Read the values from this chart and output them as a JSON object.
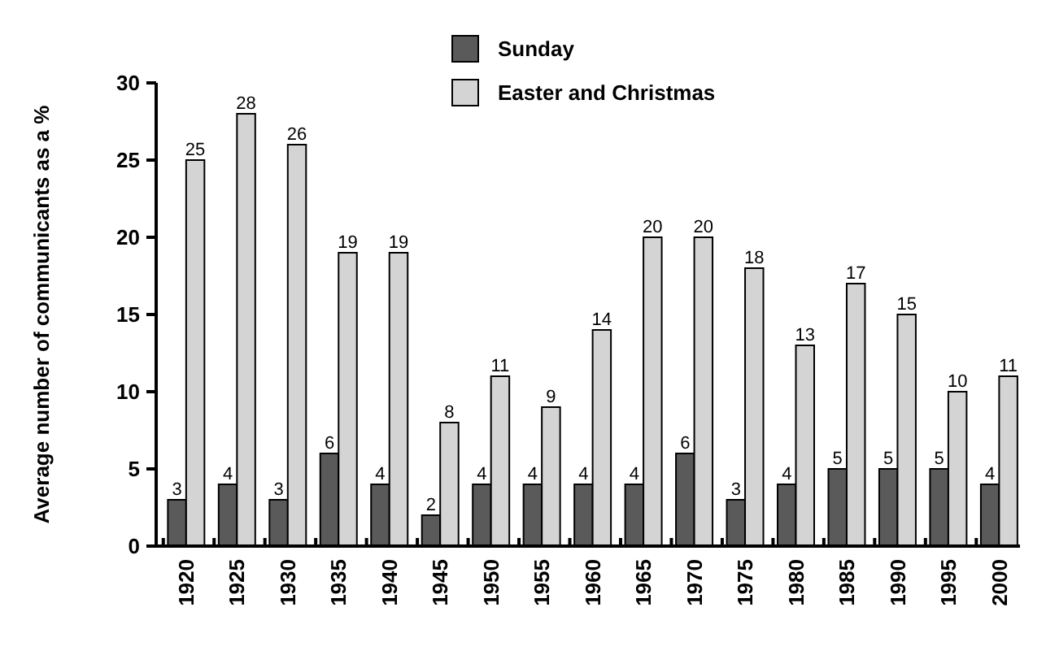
{
  "chart_data": {
    "type": "bar",
    "ylabel": "Average number of communicants as a %",
    "categories": [
      "1920",
      "1925",
      "1930",
      "1935",
      "1940",
      "1945",
      "1950",
      "1955",
      "1960",
      "1965",
      "1970",
      "1975",
      "1980",
      "1985",
      "1990",
      "1995",
      "2000"
    ],
    "series": [
      {
        "name": "Sunday",
        "color": "#5a5a5a",
        "values": [
          3,
          4,
          3,
          6,
          4,
          2,
          4,
          4,
          4,
          4,
          6,
          3,
          4,
          5,
          5,
          5,
          4
        ]
      },
      {
        "name": "Easter and Christmas",
        "color": "#d4d4d4",
        "values": [
          25,
          28,
          26,
          19,
          19,
          8,
          11,
          9,
          14,
          20,
          20,
          18,
          13,
          17,
          15,
          10,
          11
        ]
      }
    ],
    "ylim": [
      0,
      30
    ],
    "yticks": [
      0,
      5,
      10,
      15,
      20,
      25,
      30
    ],
    "data_labels": true,
    "legend": "top",
    "grid": false
  }
}
